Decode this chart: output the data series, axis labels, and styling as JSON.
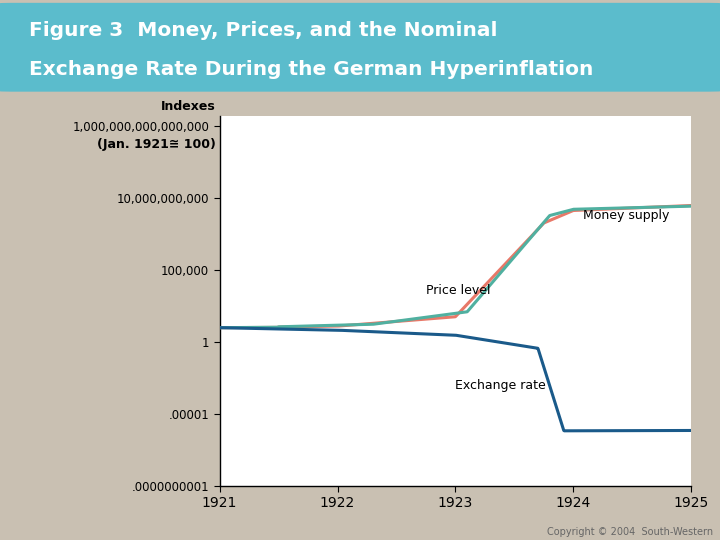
{
  "title_line1": "Figure 3  Money, Prices, and the Nominal",
  "title_line2": "Exchange Rate During the German Hyperinflation",
  "ylabel_line1": "Indexes",
  "ylabel_line2": "(Jan. 1921≅ 100)",
  "xlabel_ticks": [
    1921,
    1922,
    1923,
    1924,
    1925
  ],
  "ytick_labels": [
    "1,000,000,000,000,000",
    "10,000,000,000",
    "100,000",
    "1",
    ".00001",
    ".0000000001"
  ],
  "ytick_values": [
    1000000000000000.0,
    10000000000.0,
    100000.0,
    1.0,
    1e-05,
    1e-10
  ],
  "background_outer": "#c9c0b2",
  "background_plot": "#ffffff",
  "title_bg_color": "#5bbccc",
  "title_text_color": "#ffffff",
  "money_supply_color": "#e87868",
  "price_level_color": "#50b0a0",
  "exchange_rate_color": "#1a5a8a",
  "copyright": "Copyright © 2004  South-Western",
  "line_width": 2.2,
  "annotation_fontsize": 9
}
